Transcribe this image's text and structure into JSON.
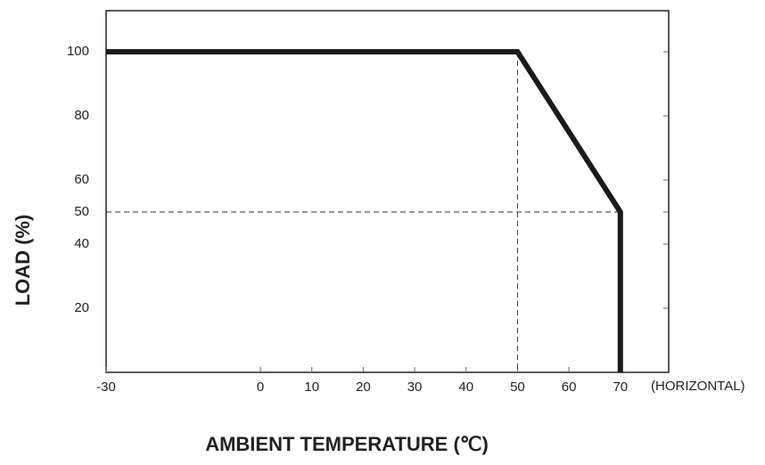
{
  "chart_data": {
    "type": "line",
    "x_label": "AMBIENT TEMPERATURE (℃)",
    "y_label": "LOAD (%)",
    "annotation": "(HORIZONTAL)",
    "x": [
      -30,
      50,
      70,
      70
    ],
    "series": [
      {
        "color": "#1a1a1a",
        "values": [
          100,
          100,
          50,
          0
        ]
      }
    ],
    "xlim": [
      -30,
      79.4
    ],
    "xticks": [
      -30,
      0,
      10,
      20,
      30,
      40,
      50,
      60,
      70
    ],
    "ylim": [
      0,
      112.8
    ],
    "yticks": [
      20,
      40,
      50,
      60,
      80,
      100
    ],
    "grid": false
  }
}
